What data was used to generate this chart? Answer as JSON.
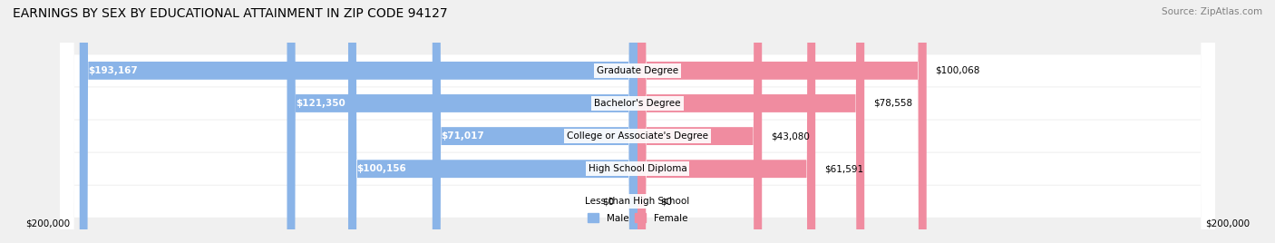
{
  "title": "EARNINGS BY SEX BY EDUCATIONAL ATTAINMENT IN ZIP CODE 94127",
  "source": "Source: ZipAtlas.com",
  "categories": [
    "Less than High School",
    "High School Diploma",
    "College or Associate's Degree",
    "Bachelor's Degree",
    "Graduate Degree"
  ],
  "male_values": [
    0,
    100156,
    71017,
    121350,
    193167
  ],
  "female_values": [
    0,
    61591,
    43080,
    78558,
    100068
  ],
  "male_color": "#8ab4e8",
  "female_color": "#f08ca0",
  "male_label": "Male",
  "female_label": "Female",
  "max_value": 200000,
  "bg_color": "#f0f0f0",
  "row_bg_color": "#e8e8e8",
  "axis_label_left": "$200,000",
  "axis_label_right": "$200,000",
  "title_fontsize": 10,
  "source_fontsize": 7.5,
  "bar_label_fontsize": 7.5,
  "category_fontsize": 7.5
}
